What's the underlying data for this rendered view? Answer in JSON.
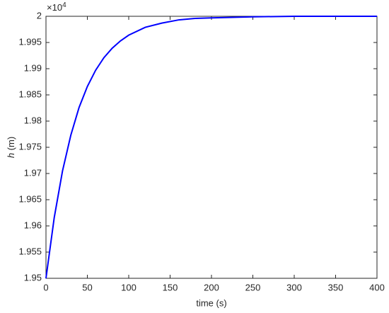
{
  "chart_data": {
    "type": "line",
    "xlabel": "time (s)",
    "ylabel_var": "h",
    "ylabel_unit": "(m)",
    "multiplier_base": "×10",
    "multiplier_exp": "4",
    "x": [
      0,
      10,
      20,
      30,
      40,
      50,
      60,
      70,
      80,
      90,
      100,
      120,
      140,
      160,
      180,
      200,
      250,
      300,
      350,
      400
    ],
    "series": [
      {
        "color": "#0000ff",
        "values": [
          1.95,
          1.9616,
          1.9705,
          1.9773,
          1.9826,
          1.9866,
          1.9897,
          1.9921,
          1.9939,
          1.9953,
          1.9964,
          1.9979,
          1.9987,
          1.9993,
          1.9996,
          1.9997,
          1.9999,
          2,
          2,
          2
        ]
      }
    ],
    "xlim": [
      0,
      400
    ],
    "xticks": [
      0,
      50,
      100,
      150,
      200,
      250,
      300,
      350,
      400
    ],
    "ylim": [
      1.95,
      2
    ],
    "yticks": [
      1.95,
      1.955,
      1.96,
      1.965,
      1.97,
      1.975,
      1.98,
      1.985,
      1.99,
      1.995,
      2
    ],
    "grid": false
  }
}
